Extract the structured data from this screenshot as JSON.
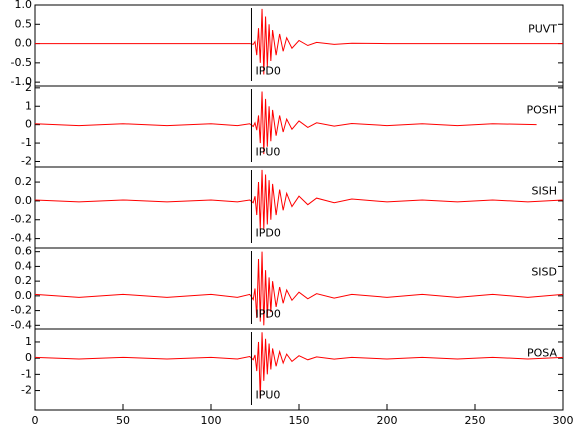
{
  "chart_data": [
    {
      "type": "line",
      "station": "PUVT",
      "color": "#ff0000",
      "pick": {
        "x": 123,
        "label": "IPD0"
      },
      "x": [
        0,
        25,
        50,
        75,
        100,
        115,
        122,
        124,
        125,
        126,
        127,
        128,
        129,
        130,
        131,
        132,
        133,
        134,
        135,
        137,
        139,
        141,
        143,
        146,
        150,
        155,
        160,
        170,
        180,
        200,
        220,
        240,
        260,
        280,
        300
      ],
      "values": [
        0,
        0,
        0,
        0,
        0,
        0,
        0,
        -0.02,
        0.05,
        -0.3,
        0.4,
        -0.5,
        0.9,
        -0.8,
        0.7,
        -0.6,
        0.5,
        -0.45,
        0.35,
        -0.3,
        0.25,
        -0.2,
        0.15,
        -0.12,
        0.08,
        -0.05,
        0.03,
        -0.02,
        0.01,
        0,
        0,
        0,
        0,
        0,
        0
      ],
      "xlim": [
        0,
        300
      ],
      "ylim": [
        -1.1,
        1.0
      ],
      "yticks": [
        {
          "value": -1,
          "label": "-1.0"
        },
        {
          "value": -0.5,
          "label": "-0.5"
        },
        {
          "value": 0,
          "label": "0.0"
        },
        {
          "value": 0.5,
          "label": "0.5"
        },
        {
          "value": 1,
          "label": "1.0"
        }
      ]
    },
    {
      "type": "line",
      "station": "POSH",
      "color": "#ff0000",
      "pick": {
        "x": 123,
        "label": "IPU0"
      },
      "x": [
        0,
        25,
        50,
        75,
        100,
        115,
        122,
        124,
        125,
        126,
        127,
        128,
        129,
        130,
        131,
        132,
        133,
        134,
        135,
        137,
        139,
        141,
        143,
        146,
        150,
        155,
        160,
        170,
        180,
        200,
        220,
        240,
        260,
        285,
        300
      ],
      "values": [
        0.05,
        -0.05,
        0.05,
        -0.05,
        0.05,
        -0.05,
        0.05,
        -0.1,
        0.1,
        -0.3,
        0.5,
        -1.0,
        1.8,
        -1.6,
        1.4,
        -1.2,
        1.0,
        -0.9,
        0.8,
        -0.6,
        0.5,
        -0.4,
        0.3,
        -0.25,
        0.2,
        -0.15,
        0.1,
        -0.08,
        0.06,
        -0.05,
        0.05,
        -0.05,
        0.05,
        0,
        null
      ],
      "xlim": [
        0,
        300
      ],
      "ylim": [
        -2.3,
        2.1
      ],
      "yticks": [
        -2,
        -1,
        0,
        1,
        2
      ]
    },
    {
      "type": "line",
      "station": "SISH",
      "color": "#ff0000",
      "pick": {
        "x": 123,
        "label": "IPD0"
      },
      "x": [
        0,
        25,
        50,
        75,
        100,
        115,
        122,
        124,
        125,
        126,
        127,
        128,
        129,
        130,
        131,
        132,
        133,
        134,
        135,
        137,
        139,
        141,
        143,
        146,
        150,
        155,
        160,
        170,
        180,
        200,
        220,
        240,
        260,
        280,
        300
      ],
      "values": [
        0.01,
        -0.01,
        0.01,
        -0.01,
        0.01,
        -0.01,
        0.01,
        -0.02,
        0.05,
        -0.15,
        0.2,
        -0.3,
        0.33,
        -0.3,
        0.28,
        -0.25,
        0.22,
        -0.2,
        0.18,
        -0.15,
        0.12,
        -0.1,
        0.08,
        -0.06,
        0.05,
        -0.04,
        0.03,
        -0.02,
        0.02,
        -0.01,
        0.01,
        -0.01,
        0.01,
        -0.01,
        0.01
      ],
      "xlim": [
        0,
        300
      ],
      "ylim": [
        -0.5,
        0.36
      ],
      "yticks": [
        {
          "value": -0.4,
          "label": "-0.4"
        },
        {
          "value": -0.2,
          "label": "-0.2"
        },
        {
          "value": 0,
          "label": "0.0"
        },
        {
          "value": 0.2,
          "label": "0.2"
        }
      ]
    },
    {
      "type": "line",
      "station": "SISD",
      "color": "#ff0000",
      "pick": {
        "x": 123,
        "label": "IPD0"
      },
      "x": [
        0,
        25,
        50,
        75,
        100,
        115,
        122,
        124,
        125,
        126,
        127,
        128,
        129,
        130,
        131,
        132,
        133,
        134,
        135,
        137,
        139,
        141,
        143,
        146,
        150,
        155,
        160,
        170,
        180,
        200,
        220,
        240,
        260,
        280,
        300
      ],
      "values": [
        0.02,
        -0.02,
        0.02,
        -0.02,
        0.02,
        -0.02,
        0.02,
        -0.05,
        0.1,
        -0.3,
        0.5,
        -0.35,
        0.6,
        -0.4,
        0.35,
        -0.3,
        0.25,
        -0.22,
        0.2,
        -0.15,
        0.12,
        -0.1,
        0.08,
        -0.06,
        0.05,
        -0.04,
        0.03,
        -0.03,
        0.02,
        -0.02,
        0.02,
        -0.02,
        0.02,
        -0.02,
        0.02
      ],
      "xlim": [
        0,
        300
      ],
      "ylim": [
        -0.45,
        0.65
      ],
      "yticks": [
        {
          "value": -0.4,
          "label": "-0.4"
        },
        {
          "value": -0.2,
          "label": "-0.2"
        },
        {
          "value": 0,
          "label": "0.0"
        },
        {
          "value": 0.2,
          "label": "0.2"
        },
        {
          "value": 0.4,
          "label": "0.4"
        },
        {
          "value": 0.6,
          "label": "0.6"
        }
      ]
    },
    {
      "type": "line",
      "station": "POSA",
      "color": "#ff0000",
      "pick": {
        "x": 123,
        "label": "IPU0"
      },
      "x": [
        0,
        25,
        50,
        75,
        100,
        115,
        122,
        124,
        125,
        126,
        127,
        128,
        129,
        130,
        131,
        132,
        133,
        134,
        135,
        137,
        139,
        141,
        143,
        146,
        150,
        155,
        160,
        170,
        180,
        200,
        220,
        240,
        260,
        280,
        300
      ],
      "values": [
        0.05,
        -0.05,
        0.05,
        -0.05,
        0.05,
        -0.05,
        0.1,
        -0.1,
        0.2,
        -0.8,
        1.0,
        -2.5,
        1.6,
        -1.4,
        1.2,
        -1.0,
        0.9,
        -0.7,
        0.6,
        -0.5,
        0.4,
        -0.3,
        0.25,
        -0.2,
        0.15,
        -0.1,
        0.08,
        -0.06,
        0.05,
        -0.05,
        0.05,
        -0.05,
        0.05,
        -0.05,
        0.05
      ],
      "xlim": [
        0,
        300
      ],
      "ylim": [
        -3.2,
        1.8
      ],
      "yticks": [
        -2,
        -1,
        0,
        1
      ],
      "xticks": [
        0,
        50,
        100,
        150,
        200,
        250,
        300
      ]
    }
  ]
}
